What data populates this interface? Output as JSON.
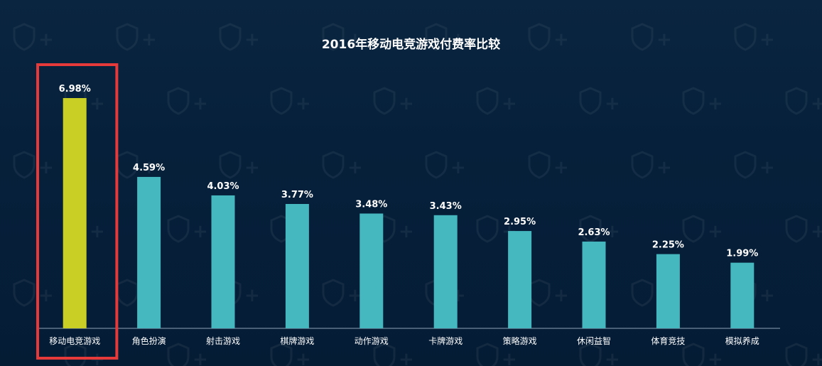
{
  "chart_data": {
    "type": "bar",
    "title": "2016年移动电竞游戏付费率比较",
    "categories": [
      "移动电竞游戏",
      "角色扮演",
      "射击游戏",
      "棋牌游戏",
      "动作游戏",
      "卡牌游戏",
      "策略游戏",
      "休闲益智",
      "体育竞技",
      "模拟养成"
    ],
    "values": [
      6.98,
      4.59,
      4.03,
      3.77,
      3.48,
      3.43,
      2.95,
      2.63,
      2.25,
      1.99
    ],
    "value_labels": [
      "6.98%",
      "4.59%",
      "4.03%",
      "3.77%",
      "3.48%",
      "3.43%",
      "2.95%",
      "2.63%",
      "2.25%",
      "1.99%"
    ],
    "ylim": [
      0,
      7.4
    ],
    "grid": false,
    "highlight_index": 0,
    "colors": {
      "highlight_bar": "#c9cf25",
      "bar": "#45b7bf",
      "highlight_box": "#e63a3a",
      "axis": "#8fa3b5",
      "label": "#ffffff"
    }
  }
}
